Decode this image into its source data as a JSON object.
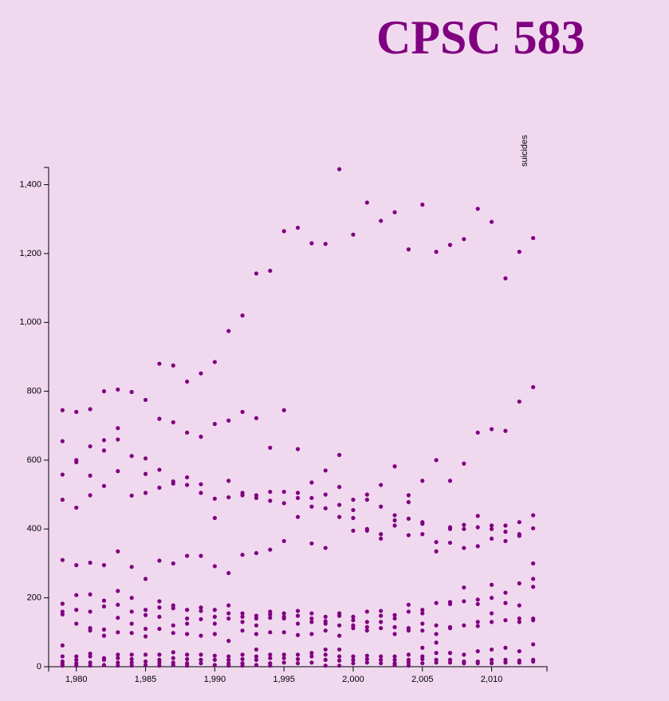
{
  "page": {
    "title": "CPSC 583",
    "background": "#f0d9ef",
    "title_color": "#800080"
  },
  "chart_data": {
    "type": "scatter",
    "title": "",
    "xlabel": "",
    "ylabel": "suicides",
    "xlim": [
      1978,
      2014
    ],
    "ylim": [
      0,
      1450
    ],
    "x_ticks": [
      1980,
      1985,
      1990,
      1995,
      2000,
      2005,
      2010
    ],
    "x_tick_labels": [
      "1,980",
      "1,985",
      "1,990",
      "1,995",
      "2,000",
      "2,005",
      "2,010"
    ],
    "y_ticks": [
      0,
      200,
      400,
      600,
      800,
      1000,
      1200,
      1400
    ],
    "y_tick_labels": [
      "0",
      "200",
      "400",
      "600",
      "800",
      "1,000",
      "1,200",
      "1,400"
    ],
    "point_color": "#800080",
    "grid": false,
    "points": [
      [
        1979,
        745
      ],
      [
        1979,
        655
      ],
      [
        1979,
        558
      ],
      [
        1979,
        485
      ],
      [
        1979,
        310
      ],
      [
        1979,
        183
      ],
      [
        1979,
        160
      ],
      [
        1979,
        152
      ],
      [
        1979,
        62
      ],
      [
        1979,
        30
      ],
      [
        1979,
        15
      ],
      [
        1979,
        8
      ],
      [
        1979,
        3
      ],
      [
        1980,
        740
      ],
      [
        1980,
        600
      ],
      [
        1980,
        594
      ],
      [
        1980,
        462
      ],
      [
        1980,
        295
      ],
      [
        1980,
        208
      ],
      [
        1980,
        165
      ],
      [
        1980,
        125
      ],
      [
        1980,
        30
      ],
      [
        1980,
        20
      ],
      [
        1980,
        10
      ],
      [
        1980,
        3
      ],
      [
        1981,
        748
      ],
      [
        1981,
        640
      ],
      [
        1981,
        555
      ],
      [
        1981,
        498
      ],
      [
        1981,
        302
      ],
      [
        1981,
        210
      ],
      [
        1981,
        160
      ],
      [
        1981,
        112
      ],
      [
        1981,
        105
      ],
      [
        1981,
        38
      ],
      [
        1981,
        30
      ],
      [
        1981,
        12
      ],
      [
        1981,
        3
      ],
      [
        1982,
        800
      ],
      [
        1982,
        658
      ],
      [
        1982,
        628
      ],
      [
        1982,
        525
      ],
      [
        1982,
        295
      ],
      [
        1982,
        192
      ],
      [
        1982,
        175
      ],
      [
        1982,
        108
      ],
      [
        1982,
        90
      ],
      [
        1982,
        25
      ],
      [
        1982,
        20
      ],
      [
        1982,
        5
      ],
      [
        1983,
        805
      ],
      [
        1983,
        693
      ],
      [
        1983,
        660
      ],
      [
        1983,
        568
      ],
      [
        1983,
        335
      ],
      [
        1983,
        220
      ],
      [
        1983,
        180
      ],
      [
        1983,
        142
      ],
      [
        1983,
        100
      ],
      [
        1983,
        35
      ],
      [
        1983,
        25
      ],
      [
        1983,
        12
      ],
      [
        1983,
        3
      ],
      [
        1984,
        798
      ],
      [
        1984,
        612
      ],
      [
        1984,
        497
      ],
      [
        1984,
        290
      ],
      [
        1984,
        200
      ],
      [
        1984,
        160
      ],
      [
        1984,
        125
      ],
      [
        1984,
        98
      ],
      [
        1984,
        35
      ],
      [
        1984,
        22
      ],
      [
        1984,
        12
      ],
      [
        1984,
        3
      ],
      [
        1985,
        775
      ],
      [
        1985,
        605
      ],
      [
        1985,
        560
      ],
      [
        1985,
        505
      ],
      [
        1985,
        255
      ],
      [
        1985,
        165
      ],
      [
        1985,
        150
      ],
      [
        1985,
        110
      ],
      [
        1985,
        88
      ],
      [
        1985,
        35
      ],
      [
        1985,
        15
      ],
      [
        1985,
        5
      ],
      [
        1986,
        880
      ],
      [
        1986,
        720
      ],
      [
        1986,
        572
      ],
      [
        1986,
        520
      ],
      [
        1986,
        308
      ],
      [
        1986,
        190
      ],
      [
        1986,
        172
      ],
      [
        1986,
        145
      ],
      [
        1986,
        110
      ],
      [
        1986,
        35
      ],
      [
        1986,
        20
      ],
      [
        1986,
        12
      ],
      [
        1986,
        3
      ],
      [
        1987,
        875
      ],
      [
        1987,
        710
      ],
      [
        1987,
        538
      ],
      [
        1987,
        532
      ],
      [
        1987,
        300
      ],
      [
        1987,
        178
      ],
      [
        1987,
        170
      ],
      [
        1987,
        120
      ],
      [
        1987,
        98
      ],
      [
        1987,
        42
      ],
      [
        1987,
        25
      ],
      [
        1987,
        12
      ],
      [
        1987,
        5
      ],
      [
        1988,
        828
      ],
      [
        1988,
        680
      ],
      [
        1988,
        550
      ],
      [
        1988,
        528
      ],
      [
        1988,
        322
      ],
      [
        1988,
        165
      ],
      [
        1988,
        140
      ],
      [
        1988,
        125
      ],
      [
        1988,
        95
      ],
      [
        1988,
        35
      ],
      [
        1988,
        22
      ],
      [
        1988,
        10
      ],
      [
        1988,
        3
      ],
      [
        1989,
        852
      ],
      [
        1989,
        668
      ],
      [
        1989,
        530
      ],
      [
        1989,
        505
      ],
      [
        1989,
        322
      ],
      [
        1989,
        172
      ],
      [
        1989,
        162
      ],
      [
        1989,
        138
      ],
      [
        1989,
        90
      ],
      [
        1989,
        35
      ],
      [
        1989,
        20
      ],
      [
        1989,
        10
      ],
      [
        1990,
        885
      ],
      [
        1990,
        705
      ],
      [
        1990,
        488
      ],
      [
        1990,
        432
      ],
      [
        1990,
        292
      ],
      [
        1990,
        165
      ],
      [
        1990,
        145
      ],
      [
        1990,
        125
      ],
      [
        1990,
        95
      ],
      [
        1990,
        32
      ],
      [
        1990,
        20
      ],
      [
        1990,
        5
      ],
      [
        1991,
        975
      ],
      [
        1991,
        715
      ],
      [
        1991,
        540
      ],
      [
        1991,
        492
      ],
      [
        1991,
        272
      ],
      [
        1991,
        178
      ],
      [
        1991,
        155
      ],
      [
        1991,
        140
      ],
      [
        1991,
        75
      ],
      [
        1991,
        30
      ],
      [
        1991,
        20
      ],
      [
        1991,
        10
      ],
      [
        1991,
        3
      ],
      [
        1992,
        1020
      ],
      [
        1992,
        740
      ],
      [
        1992,
        505
      ],
      [
        1992,
        498
      ],
      [
        1992,
        325
      ],
      [
        1992,
        155
      ],
      [
        1992,
        145
      ],
      [
        1992,
        130
      ],
      [
        1992,
        105
      ],
      [
        1992,
        35
      ],
      [
        1992,
        22
      ],
      [
        1992,
        10
      ],
      [
        1992,
        3
      ],
      [
        1993,
        1142
      ],
      [
        1993,
        722
      ],
      [
        1993,
        498
      ],
      [
        1993,
        490
      ],
      [
        1993,
        330
      ],
      [
        1993,
        148
      ],
      [
        1993,
        140
      ],
      [
        1993,
        120
      ],
      [
        1993,
        95
      ],
      [
        1993,
        50
      ],
      [
        1993,
        30
      ],
      [
        1993,
        20
      ],
      [
        1993,
        5
      ],
      [
        1994,
        1150
      ],
      [
        1994,
        636
      ],
      [
        1994,
        508
      ],
      [
        1994,
        482
      ],
      [
        1994,
        340
      ],
      [
        1994,
        160
      ],
      [
        1994,
        152
      ],
      [
        1994,
        142
      ],
      [
        1994,
        100
      ],
      [
        1994,
        35
      ],
      [
        1994,
        25
      ],
      [
        1994,
        10
      ],
      [
        1994,
        3
      ],
      [
        1995,
        1265
      ],
      [
        1995,
        745
      ],
      [
        1995,
        508
      ],
      [
        1995,
        475
      ],
      [
        1995,
        365
      ],
      [
        1995,
        155
      ],
      [
        1995,
        145
      ],
      [
        1995,
        140
      ],
      [
        1995,
        100
      ],
      [
        1995,
        35
      ],
      [
        1995,
        25
      ],
      [
        1995,
        12
      ],
      [
        1996,
        1275
      ],
      [
        1996,
        632
      ],
      [
        1996,
        505
      ],
      [
        1996,
        490
      ],
      [
        1996,
        435
      ],
      [
        1996,
        162
      ],
      [
        1996,
        148
      ],
      [
        1996,
        125
      ],
      [
        1996,
        92
      ],
      [
        1996,
        35
      ],
      [
        1996,
        22
      ],
      [
        1996,
        10
      ],
      [
        1997,
        1230
      ],
      [
        1997,
        535
      ],
      [
        1997,
        490
      ],
      [
        1997,
        465
      ],
      [
        1997,
        358
      ],
      [
        1997,
        155
      ],
      [
        1997,
        140
      ],
      [
        1997,
        130
      ],
      [
        1997,
        95
      ],
      [
        1997,
        40
      ],
      [
        1997,
        30
      ],
      [
        1997,
        12
      ],
      [
        1998,
        1228
      ],
      [
        1998,
        570
      ],
      [
        1998,
        500
      ],
      [
        1998,
        460
      ],
      [
        1998,
        345
      ],
      [
        1998,
        145
      ],
      [
        1998,
        132
      ],
      [
        1998,
        125
      ],
      [
        1998,
        105
      ],
      [
        1998,
        50
      ],
      [
        1998,
        35
      ],
      [
        1998,
        20
      ],
      [
        1998,
        3
      ],
      [
        1999,
        1445
      ],
      [
        1999,
        615
      ],
      [
        1999,
        522
      ],
      [
        1999,
        470
      ],
      [
        1999,
        435
      ],
      [
        1999,
        155
      ],
      [
        1999,
        148
      ],
      [
        1999,
        120
      ],
      [
        1999,
        90
      ],
      [
        1999,
        50
      ],
      [
        1999,
        30
      ],
      [
        1999,
        18
      ],
      [
        1999,
        3
      ],
      [
        2000,
        1255
      ],
      [
        2000,
        485
      ],
      [
        2000,
        455
      ],
      [
        2000,
        432
      ],
      [
        2000,
        395
      ],
      [
        2000,
        145
      ],
      [
        2000,
        135
      ],
      [
        2000,
        120
      ],
      [
        2000,
        112
      ],
      [
        2000,
        30
      ],
      [
        2000,
        20
      ],
      [
        2000,
        10
      ],
      [
        2001,
        1348
      ],
      [
        2001,
        500
      ],
      [
        2001,
        485
      ],
      [
        2001,
        400
      ],
      [
        2001,
        395
      ],
      [
        2001,
        160
      ],
      [
        2001,
        130
      ],
      [
        2001,
        115
      ],
      [
        2001,
        105
      ],
      [
        2001,
        32
      ],
      [
        2001,
        22
      ],
      [
        2001,
        12
      ],
      [
        2002,
        1295
      ],
      [
        2002,
        528
      ],
      [
        2002,
        465
      ],
      [
        2002,
        385
      ],
      [
        2002,
        372
      ],
      [
        2002,
        162
      ],
      [
        2002,
        148
      ],
      [
        2002,
        130
      ],
      [
        2002,
        112
      ],
      [
        2002,
        30
      ],
      [
        2002,
        20
      ],
      [
        2002,
        10
      ],
      [
        2003,
        1320
      ],
      [
        2003,
        582
      ],
      [
        2003,
        440
      ],
      [
        2003,
        425
      ],
      [
        2003,
        410
      ],
      [
        2003,
        150
      ],
      [
        2003,
        140
      ],
      [
        2003,
        115
      ],
      [
        2003,
        95
      ],
      [
        2003,
        30
      ],
      [
        2003,
        20
      ],
      [
        2003,
        10
      ],
      [
        2003,
        5
      ],
      [
        2004,
        1212
      ],
      [
        2004,
        498
      ],
      [
        2004,
        478
      ],
      [
        2004,
        430
      ],
      [
        2004,
        382
      ],
      [
        2004,
        180
      ],
      [
        2004,
        160
      ],
      [
        2004,
        112
      ],
      [
        2004,
        105
      ],
      [
        2004,
        35
      ],
      [
        2004,
        20
      ],
      [
        2004,
        12
      ],
      [
        2004,
        3
      ],
      [
        2005,
        1342
      ],
      [
        2005,
        540
      ],
      [
        2005,
        420
      ],
      [
        2005,
        415
      ],
      [
        2005,
        385
      ],
      [
        2005,
        165
      ],
      [
        2005,
        155
      ],
      [
        2005,
        125
      ],
      [
        2005,
        105
      ],
      [
        2005,
        55
      ],
      [
        2005,
        30
      ],
      [
        2005,
        22
      ],
      [
        2005,
        10
      ],
      [
        2006,
        1205
      ],
      [
        2006,
        600
      ],
      [
        2006,
        362
      ],
      [
        2006,
        335
      ],
      [
        2006,
        185
      ],
      [
        2006,
        120
      ],
      [
        2006,
        95
      ],
      [
        2006,
        70
      ],
      [
        2006,
        40
      ],
      [
        2006,
        20
      ],
      [
        2006,
        12
      ],
      [
        2007,
        1225
      ],
      [
        2007,
        540
      ],
      [
        2007,
        405
      ],
      [
        2007,
        400
      ],
      [
        2007,
        360
      ],
      [
        2007,
        188
      ],
      [
        2007,
        182
      ],
      [
        2007,
        115
      ],
      [
        2007,
        112
      ],
      [
        2007,
        40
      ],
      [
        2007,
        20
      ],
      [
        2007,
        12
      ],
      [
        2008,
        1242
      ],
      [
        2008,
        590
      ],
      [
        2008,
        412
      ],
      [
        2008,
        400
      ],
      [
        2008,
        345
      ],
      [
        2008,
        230
      ],
      [
        2008,
        190
      ],
      [
        2008,
        120
      ],
      [
        2008,
        35
      ],
      [
        2008,
        15
      ],
      [
        2008,
        10
      ],
      [
        2009,
        1330
      ],
      [
        2009,
        680
      ],
      [
        2009,
        438
      ],
      [
        2009,
        405
      ],
      [
        2009,
        350
      ],
      [
        2009,
        195
      ],
      [
        2009,
        182
      ],
      [
        2009,
        130
      ],
      [
        2009,
        118
      ],
      [
        2009,
        45
      ],
      [
        2009,
        15
      ],
      [
        2009,
        10
      ],
      [
        2010,
        1292
      ],
      [
        2010,
        690
      ],
      [
        2010,
        410
      ],
      [
        2010,
        400
      ],
      [
        2010,
        372
      ],
      [
        2010,
        238
      ],
      [
        2010,
        200
      ],
      [
        2010,
        155
      ],
      [
        2010,
        130
      ],
      [
        2010,
        50
      ],
      [
        2010,
        20
      ],
      [
        2010,
        10
      ],
      [
        2011,
        1128
      ],
      [
        2011,
        685
      ],
      [
        2011,
        410
      ],
      [
        2011,
        392
      ],
      [
        2011,
        365
      ],
      [
        2011,
        215
      ],
      [
        2011,
        185
      ],
      [
        2011,
        135
      ],
      [
        2011,
        55
      ],
      [
        2011,
        20
      ],
      [
        2011,
        12
      ],
      [
        2012,
        1205
      ],
      [
        2012,
        770
      ],
      [
        2012,
        420
      ],
      [
        2012,
        385
      ],
      [
        2012,
        380
      ],
      [
        2012,
        242
      ],
      [
        2012,
        178
      ],
      [
        2012,
        140
      ],
      [
        2012,
        130
      ],
      [
        2012,
        45
      ],
      [
        2012,
        18
      ],
      [
        2012,
        12
      ],
      [
        2013,
        1245
      ],
      [
        2013,
        812
      ],
      [
        2013,
        440
      ],
      [
        2013,
        402
      ],
      [
        2013,
        300
      ],
      [
        2013,
        255
      ],
      [
        2013,
        232
      ],
      [
        2013,
        140
      ],
      [
        2013,
        135
      ],
      [
        2013,
        65
      ],
      [
        2013,
        20
      ],
      [
        2013,
        15
      ]
    ]
  }
}
